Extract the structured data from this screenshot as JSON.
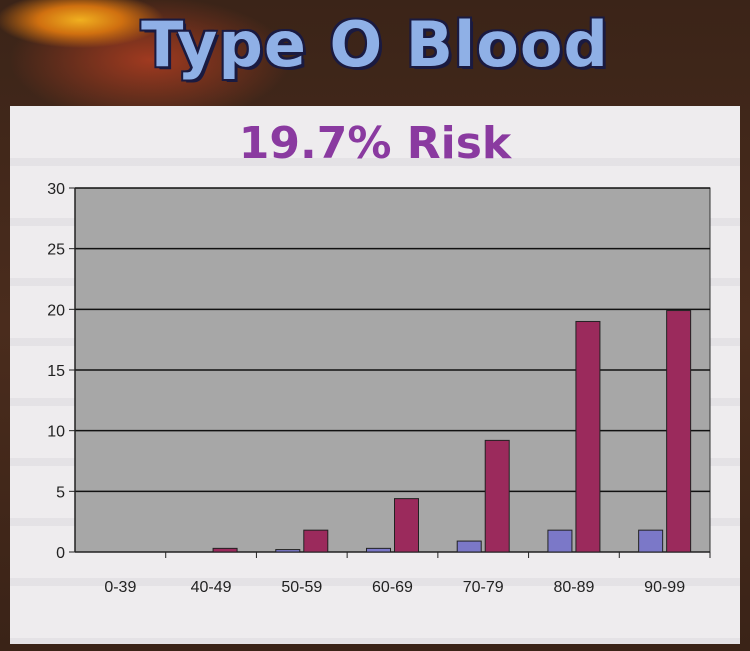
{
  "header": {
    "title": "Type O Blood"
  },
  "chart_data": {
    "type": "bar",
    "title": "19.7% Risk",
    "categories": [
      "0-39",
      "40-49",
      "50-59",
      "60-69",
      "70-79",
      "80-89",
      "90-99"
    ],
    "series": [
      {
        "values": [
          0,
          0,
          0.2,
          0.3,
          0.9,
          1.8,
          1.8
        ],
        "color": "#7b78c8"
      },
      {
        "values": [
          0,
          0.3,
          1.8,
          4.4,
          9.2,
          19.0,
          19.9
        ],
        "color": "#9b2a5c"
      }
    ],
    "ylim": [
      0,
      30
    ],
    "yticks": [
      0,
      5,
      10,
      15,
      20,
      25,
      30
    ],
    "grid": true,
    "plot_background": "#a7a7a7"
  }
}
